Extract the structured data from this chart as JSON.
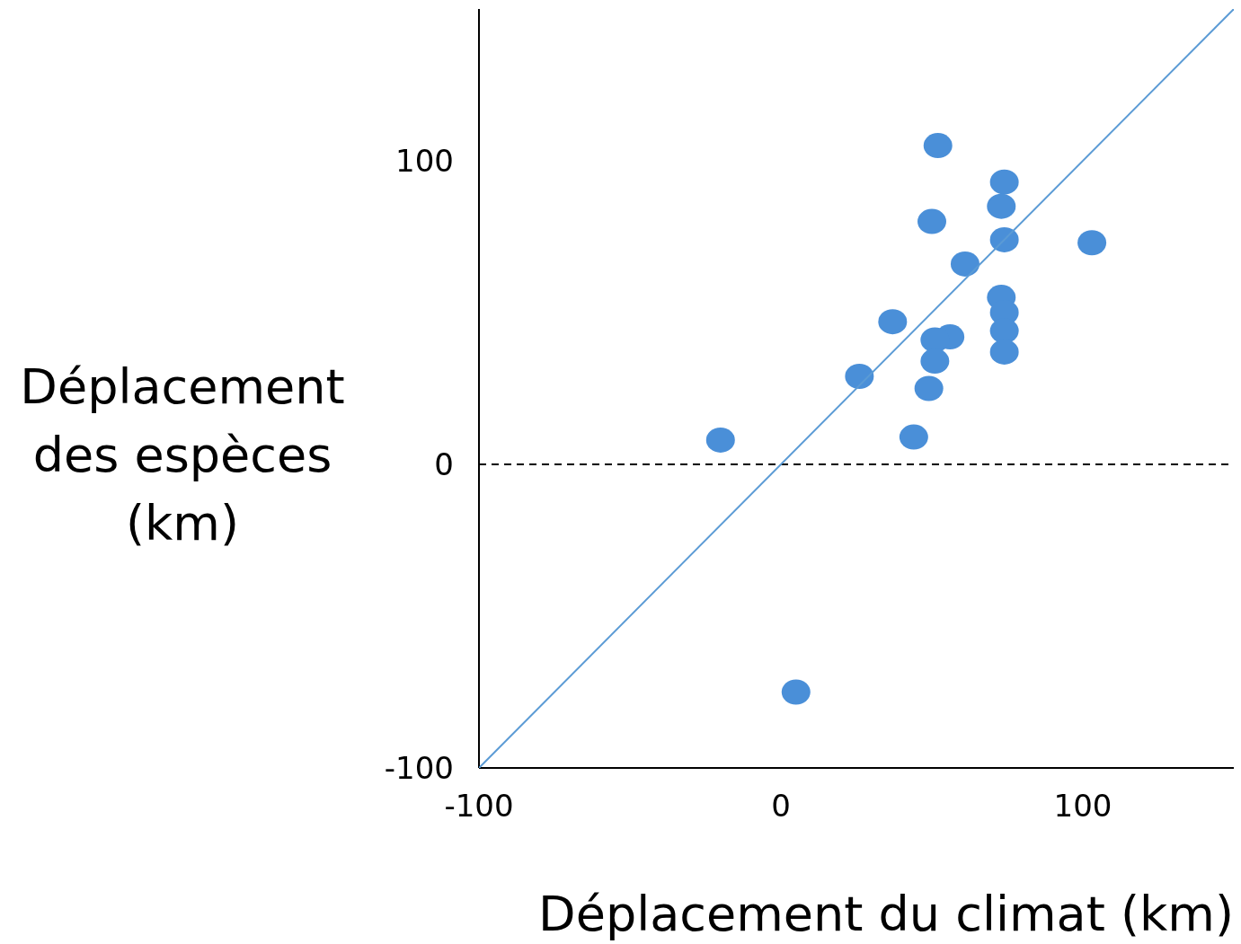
{
  "chart_data": {
    "type": "scatter",
    "xlabel": "Déplacement du climat (km)",
    "ylabel": "Déplacement des espèces (km)",
    "xlim": [
      -100,
      150
    ],
    "ylim": [
      -100,
      150
    ],
    "xticks": [
      -100,
      0,
      100
    ],
    "yticks": [
      -100,
      0,
      100
    ],
    "marker": "circle",
    "series": [
      {
        "type": "scatter",
        "color": "#4a8fd8",
        "x": [
          52,
          74,
          73,
          50,
          74,
          103,
          61,
          73,
          74,
          37,
          56,
          51,
          74,
          74,
          51,
          26,
          49,
          44,
          -20,
          5
        ],
        "values": [
          105,
          93,
          85,
          80,
          74,
          73,
          66,
          55,
          50,
          47,
          42,
          41,
          44,
          37,
          34,
          29,
          25,
          9,
          8,
          -75
        ]
      },
      {
        "type": "line",
        "color": "#5b9bd5",
        "marker": "none",
        "x": [
          -100,
          150
        ],
        "values": [
          -100,
          150
        ]
      }
    ],
    "ref_lines": [
      {
        "axis": "y",
        "value": 0,
        "color": "#000000",
        "line_style": "dashed"
      }
    ]
  }
}
